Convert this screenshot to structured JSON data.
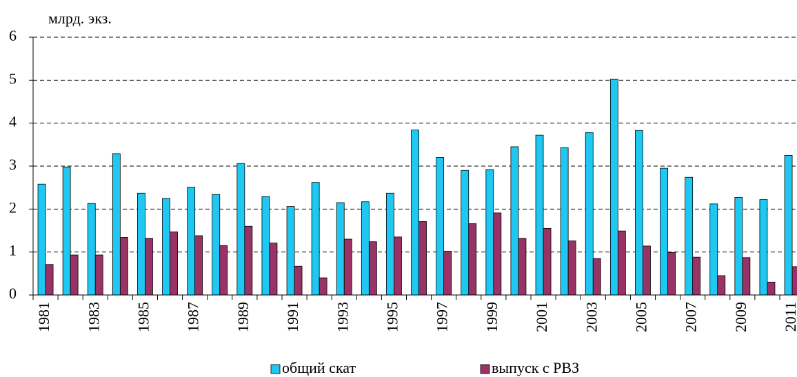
{
  "chart_data": {
    "type": "bar",
    "y_label": "млрд. экз.",
    "categories": [
      "1981",
      null,
      "1983",
      null,
      "1985",
      null,
      "1987",
      null,
      "1989",
      null,
      "1991",
      null,
      "1993",
      null,
      "1995",
      null,
      "1997",
      null,
      "1999",
      null,
      "2001",
      null,
      "2003",
      null,
      "2005",
      null,
      "2007",
      null,
      "2009",
      null,
      "2011"
    ],
    "series": [
      {
        "name": "общий скат",
        "color": "#1ec8f2",
        "values": [
          2.58,
          2.98,
          2.13,
          3.29,
          2.37,
          2.25,
          2.51,
          2.34,
          3.06,
          2.29,
          2.06,
          2.62,
          2.15,
          2.17,
          2.37,
          3.84,
          3.2,
          2.9,
          2.92,
          3.45,
          3.72,
          3.43,
          3.78,
          5.02,
          3.83,
          2.95,
          2.74,
          2.12,
          2.27,
          2.22,
          3.25
        ]
      },
      {
        "name": "выпуск с РВЗ",
        "color": "#993366",
        "values": [
          0.71,
          0.93,
          0.93,
          1.34,
          1.32,
          1.47,
          1.38,
          1.15,
          1.6,
          1.21,
          0.67,
          0.4,
          1.3,
          1.24,
          1.35,
          1.71,
          1.02,
          1.66,
          1.91,
          1.32,
          1.55,
          1.26,
          0.85,
          1.49,
          1.14,
          0.99,
          0.88,
          0.45,
          0.87,
          0.3,
          0.66
        ]
      }
    ],
    "ylim": [
      0,
      6
    ],
    "yticks": [
      0,
      1,
      2,
      3,
      4,
      5,
      6
    ],
    "grid": true,
    "legend": "bottom"
  }
}
